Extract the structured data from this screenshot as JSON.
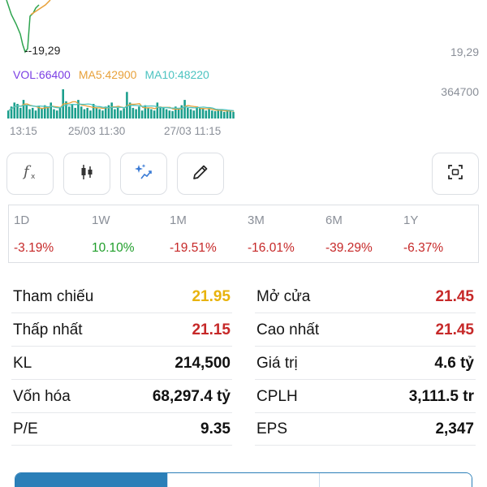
{
  "chart": {
    "low_marker": "--19,29",
    "right_price": "19,29",
    "right_volume": "364700",
    "indicators": [
      {
        "text": "VOL:66400",
        "color": "#7b3fe4"
      },
      {
        "text": "MA5:42900",
        "color": "#e8a13a"
      },
      {
        "text": "MA10:48220",
        "color": "#4cc3c0"
      }
    ],
    "dates": [
      "13:15",
      "25/03 11:30",
      "27/03 11:15"
    ],
    "volume_bars": [
      30,
      45,
      60,
      55,
      40,
      70,
      50,
      35,
      40,
      30,
      45,
      38,
      50,
      42,
      60,
      35,
      30,
      40,
      110,
      65,
      45,
      55,
      40,
      70,
      45,
      35,
      40,
      30,
      55,
      40,
      35,
      30,
      45,
      50,
      60,
      35,
      40,
      30,
      38,
      100,
      60,
      40,
      35,
      45,
      30,
      50,
      40,
      35,
      30,
      60,
      45,
      40,
      35,
      30,
      28,
      45,
      38,
      50,
      70,
      40,
      35,
      30,
      45,
      40,
      38,
      30,
      35,
      30,
      28,
      32,
      30,
      25,
      28,
      30,
      25
    ],
    "colors": {
      "up": "#1a9e8c",
      "ma5": "#e8a13a",
      "ma10": "#4cc3c0",
      "price": "#2ea44f"
    }
  },
  "tools": [
    "function-icon",
    "candlestick-icon",
    "ai-sparkle-icon",
    "pencil-icon",
    "fullscreen-icon"
  ],
  "periods": [
    {
      "label": "1D",
      "value": "-3.19%",
      "dir": "down"
    },
    {
      "label": "1W",
      "value": "10.10%",
      "dir": "up"
    },
    {
      "label": "1M",
      "value": "-19.51%",
      "dir": "down"
    },
    {
      "label": "3M",
      "value": "-16.01%",
      "dir": "down"
    },
    {
      "label": "6M",
      "value": "-39.29%",
      "dir": "down"
    },
    {
      "label": "1Y",
      "value": "-6.37%",
      "dir": "down"
    }
  ],
  "stats": [
    [
      {
        "label": "Tham chiếu",
        "value": "21.95",
        "color": "#e8b30d"
      },
      {
        "label": "Mở cửa",
        "value": "21.45",
        "color": "#c62828"
      }
    ],
    [
      {
        "label": "Thấp nhất",
        "value": "21.15",
        "color": "#c62828"
      },
      {
        "label": "Cao nhất",
        "value": "21.45",
        "color": "#c62828"
      }
    ],
    [
      {
        "label": "KL",
        "value": "214,500",
        "color": "#111111"
      },
      {
        "label": "Giá trị",
        "value": "4.6 tỷ",
        "color": "#111111"
      }
    ],
    [
      {
        "label": "Vốn hóa",
        "value": "68,297.4 tỷ",
        "color": "#111111"
      },
      {
        "label": "CPLH",
        "value": "3,111.5 tr",
        "color": "#111111"
      }
    ],
    [
      {
        "label": "P/E",
        "value": "9.35",
        "color": "#111111"
      },
      {
        "label": "EPS",
        "value": "2,347",
        "color": "#111111"
      }
    ]
  ],
  "colors": {
    "up": "#1f9e2a",
    "down": "#c62828",
    "accent": "#2b7fb8"
  }
}
